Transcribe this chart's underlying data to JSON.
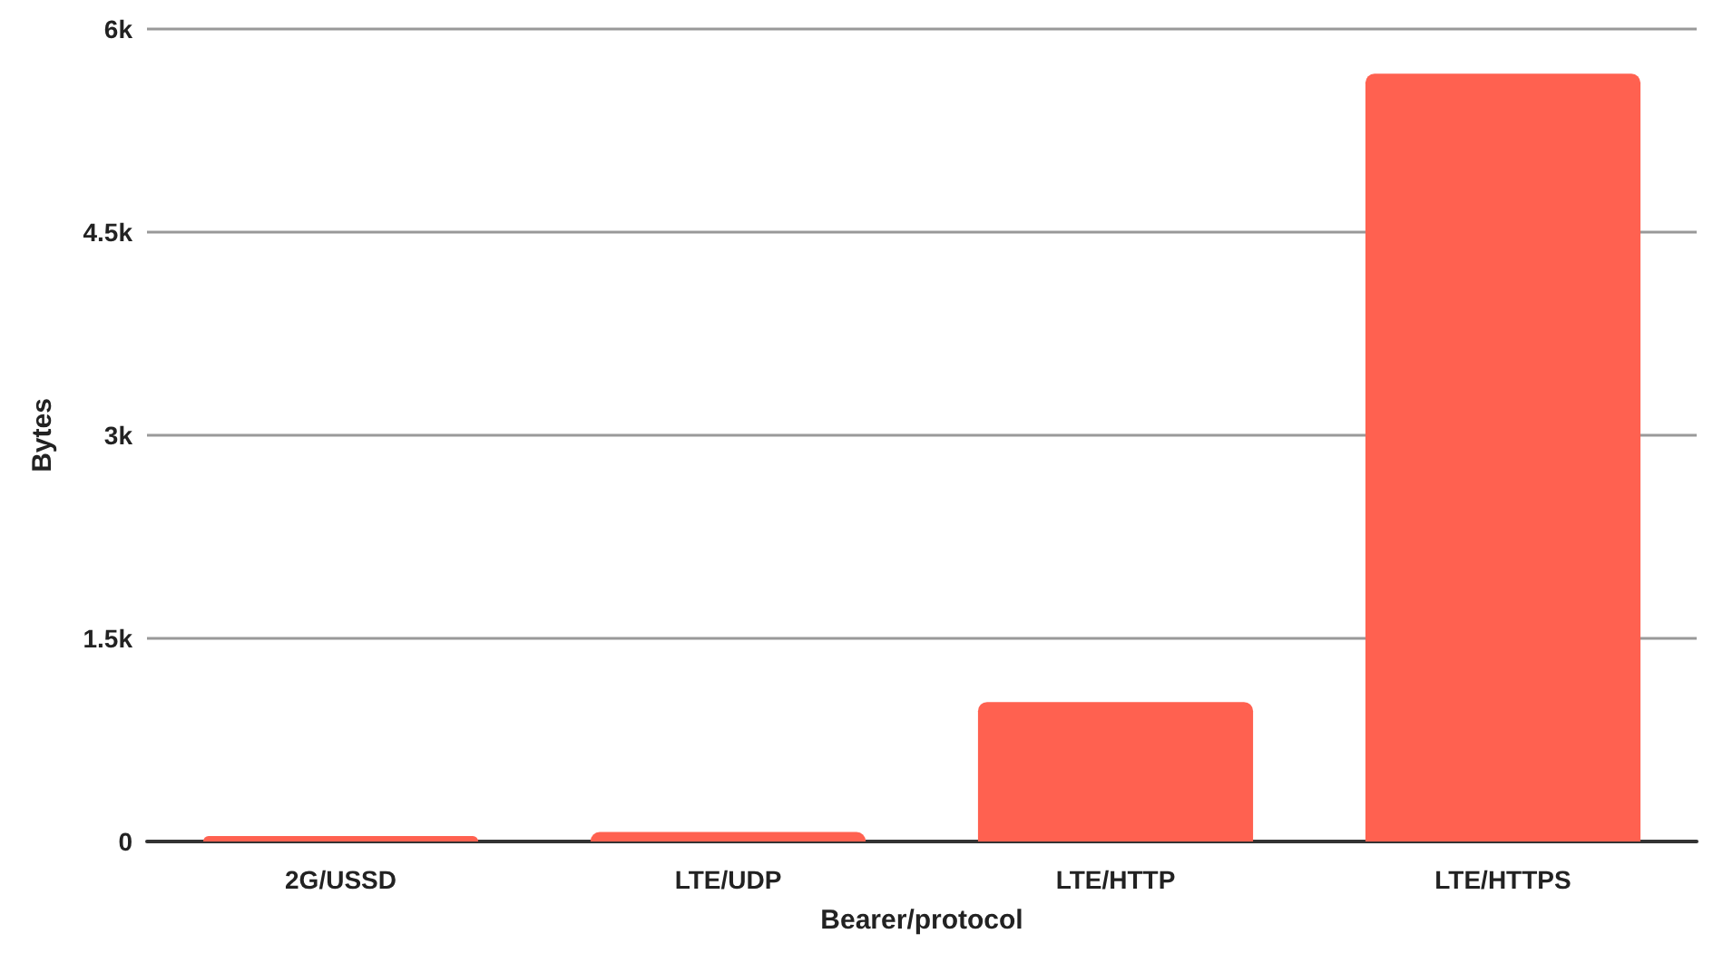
{
  "chart_data": {
    "type": "bar",
    "xlabel": "Bearer/protocol",
    "ylabel": "Bytes",
    "categories": [
      "2G/USSD",
      "LTE/UDP",
      "LTE/HTTP",
      "LTE/HTTPS"
    ],
    "values": [
      40,
      70,
      1030,
      5670
    ],
    "color": "#ff6150",
    "ylim": [
      0,
      6000
    ],
    "yticks": [
      {
        "value": 0,
        "label": "0"
      },
      {
        "value": 1500,
        "label": "1.5k"
      },
      {
        "value": 3000,
        "label": "3k"
      },
      {
        "value": 4500,
        "label": "4.5k"
      },
      {
        "value": 6000,
        "label": "6k"
      }
    ],
    "grid": "y"
  }
}
